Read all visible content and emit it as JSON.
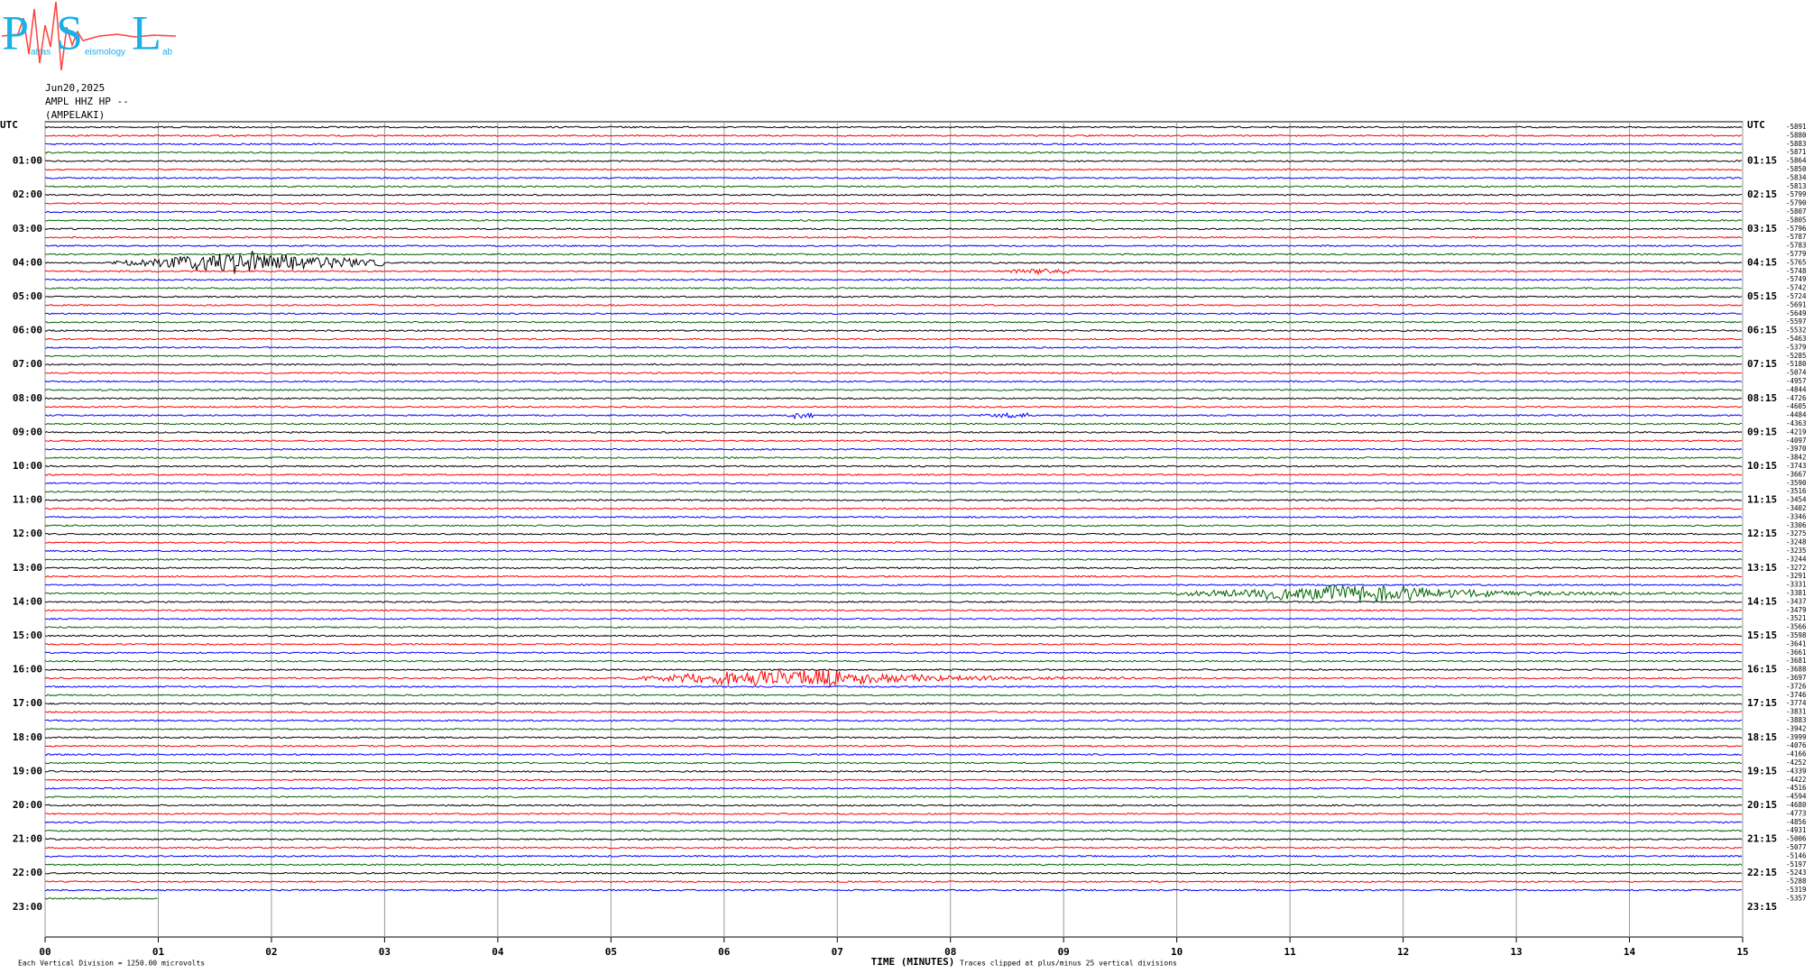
{
  "header": {
    "logo": {
      "p": "P",
      "p_rest": "atras",
      "s": "S",
      "s_rest": "eismology",
      "l": "L",
      "l_rest": "ab"
    },
    "date": "Jun20,2025",
    "station": "AMPL HHZ HP --",
    "site": "(AMPELAKI)"
  },
  "chart_data": {
    "type": "helicorder",
    "xlim": [
      0,
      15
    ],
    "xticks": [
      {
        "value": 0,
        "label": "00"
      },
      {
        "value": 1,
        "label": "01"
      },
      {
        "value": 2,
        "label": "02"
      },
      {
        "value": 3,
        "label": "03"
      },
      {
        "value": 4,
        "label": "04"
      },
      {
        "value": 5,
        "label": "05"
      },
      {
        "value": 6,
        "label": "06"
      },
      {
        "value": 7,
        "label": "07"
      },
      {
        "value": 8,
        "label": "08"
      },
      {
        "value": 9,
        "label": "09"
      },
      10,
      11,
      12,
      13,
      14,
      15
    ],
    "x_label": "TIME (MINUTES)",
    "scale_note": "Each Vertical Division = 1250.00 microvolts",
    "clip_note": "Traces clipped at plus/minus 25 vertical divisions",
    "grid": true,
    "trace_colors": [
      "#000000",
      "#ff0000",
      "#0000ff",
      "#006400"
    ],
    "left_labels": [
      "UTC",
      "01:00",
      "02:00",
      "03:00",
      "04:00",
      "05:00",
      "06:00",
      "07:00",
      "08:00",
      "09:00",
      "10:00",
      "11:00",
      "12:00",
      "13:00",
      "14:00",
      "15:00",
      "16:00",
      "17:00",
      "18:00",
      "19:00",
      "20:00",
      "21:00",
      "22:00",
      "23:00"
    ],
    "right_labels": [
      "UTC",
      "01:15",
      "02:15",
      "03:15",
      "04:15",
      "05:15",
      "06:15",
      "07:15",
      "08:15",
      "09:15",
      "10:15",
      "11:15",
      "12:15",
      "13:15",
      "14:15",
      "15:15",
      "16:15",
      "17:15",
      "18:15",
      "19:15",
      "20:15",
      "21:15",
      "22:15",
      "23:15"
    ],
    "offsets": [
      -5891,
      -5880,
      -5883,
      -5871,
      -5864,
      -5850,
      -5834,
      -5813,
      -5799,
      -5790,
      -5807,
      -5805,
      -5796,
      -5787,
      -5783,
      -5779,
      -5765,
      -5748,
      -5749,
      -5742,
      -5724,
      -5691,
      -5649,
      -5597,
      -5532,
      -5463,
      -5379,
      -5285,
      -5180,
      -5074,
      -4957,
      -4844,
      -4726,
      -4605,
      -4484,
      -4363,
      -4219,
      -4097,
      -3970,
      -3842,
      -3743,
      -3667,
      -3590,
      -3516,
      -3454,
      -3402,
      -3346,
      -3306,
      -3275,
      -3248,
      -3235,
      -3244,
      -3272,
      -3291,
      -3331,
      -3381,
      -3437,
      -3479,
      -3521,
      -3566,
      -3598,
      -3641,
      -3661,
      -3681,
      -3688,
      -3697,
      -3726,
      -3746,
      -3774,
      -3831,
      -3883,
      -3942,
      -3999,
      -4076,
      -4166,
      -4252,
      -4339,
      -4422,
      -4516,
      -4594,
      -4680,
      -4773,
      -4856,
      -4931,
      -5006,
      -5077,
      -5146,
      -5197,
      -5243,
      -5288,
      -5319,
      -5357
    ]
  }
}
